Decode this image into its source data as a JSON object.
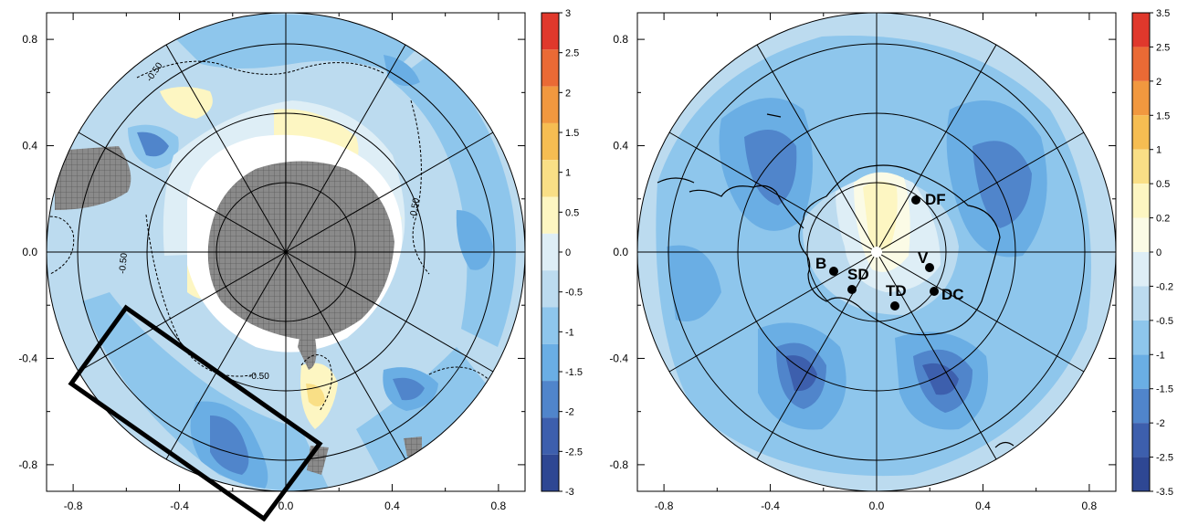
{
  "left_panel": {
    "axis_ticks": {
      "x": [
        "-0.8",
        "-0.4",
        "0.0",
        "0.4",
        "0.8"
      ],
      "y": [
        "0.8",
        "0.4",
        "0.0",
        "-0.4",
        "-0.8"
      ]
    },
    "contour_labels": [
      "-0.50",
      "-0.50",
      "-0.50",
      "-0.50"
    ],
    "colorbar": {
      "labels": [
        "3",
        "2.5",
        "2",
        "1.5",
        "1",
        "0.5",
        "0",
        "-0.5",
        "-1",
        "-1.5",
        "-2",
        "-2.5",
        "-3"
      ],
      "colors": [
        "#e0382c",
        "#ea6a35",
        "#f1983f",
        "#f6bd52",
        "#f9df86",
        "#fdf6c2",
        "#deeef6",
        "#bcdbef",
        "#8ec6ec",
        "#6aaee4",
        "#5085cb",
        "#3d5fad",
        "#2e4793"
      ]
    }
  },
  "right_panel": {
    "axis_ticks": {
      "x": [
        "-0.8",
        "-0.4",
        "0.0",
        "0.4",
        "0.8"
      ],
      "y": [
        "0.8",
        "0.4",
        "0.0",
        "-0.4",
        "-0.8"
      ]
    },
    "stations": [
      {
        "label": "DF"
      },
      {
        "label": "V"
      },
      {
        "label": "DC"
      },
      {
        "label": "TD"
      },
      {
        "label": "SD"
      },
      {
        "label": "B"
      }
    ],
    "colorbar": {
      "labels": [
        "3.5",
        "2.5",
        "2",
        "1.5",
        "1",
        "0.5",
        "0.2",
        "0",
        "-0.2",
        "-0.5",
        "-1",
        "-1.5",
        "-2",
        "-2.5",
        "-3.5"
      ],
      "colors": [
        "#e0382c",
        "#ea6a35",
        "#f1983f",
        "#f6bd52",
        "#f9df86",
        "#fdf6c2",
        "#fbfbe6",
        "#deeef6",
        "#bcdbef",
        "#8ec6ec",
        "#6aaee4",
        "#5085cb",
        "#3d5fad",
        "#2e4793"
      ]
    }
  }
}
